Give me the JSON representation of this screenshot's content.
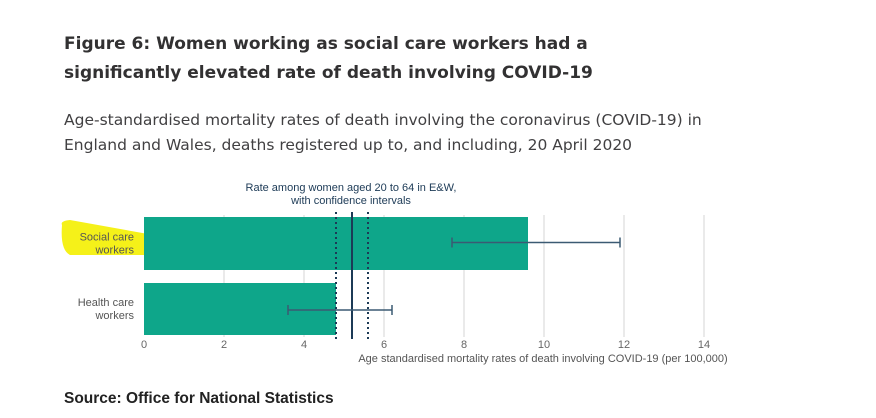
{
  "title": "Figure 6: Women working as social care workers had a significantly elevated rate of death involving COVID-19",
  "subtitle": "Age-standardised mortality rates of death involving the coronavirus (COVID-19) in England and Wales, deaths registered up to, and including, 20 April 2020",
  "source": "Source: Office for National Statistics",
  "colors": {
    "bar": "#0ea68a",
    "reference_line": "#1c3a56",
    "error_bar": "#3b5a73",
    "grid": "#d6d6d6",
    "highlight": "#f4f000"
  },
  "chart_data": {
    "type": "bar",
    "orientation": "horizontal",
    "categories": [
      "Social care workers",
      "Health care workers"
    ],
    "category_lines": [
      [
        "Social care",
        "workers"
      ],
      [
        "Health care",
        "workers"
      ]
    ],
    "values": [
      9.6,
      4.8
    ],
    "ci_lower": [
      7.7,
      3.6
    ],
    "ci_upper": [
      11.9,
      6.2
    ],
    "reference": {
      "label_lines": [
        "Rate among women aged 20 to 64 in E&W,",
        "with confidence intervals"
      ],
      "value": 5.2,
      "ci_lower": 4.8,
      "ci_upper": 5.6
    },
    "xlabel": "Age standardised mortality rates of death involving COVID-19 (per 100,000)",
    "ylabel": "",
    "xlim": [
      0,
      14
    ],
    "xticks": [
      0,
      2,
      4,
      6,
      8,
      10,
      12,
      14
    ],
    "grid": true,
    "highlighted_category": "Social care workers"
  }
}
